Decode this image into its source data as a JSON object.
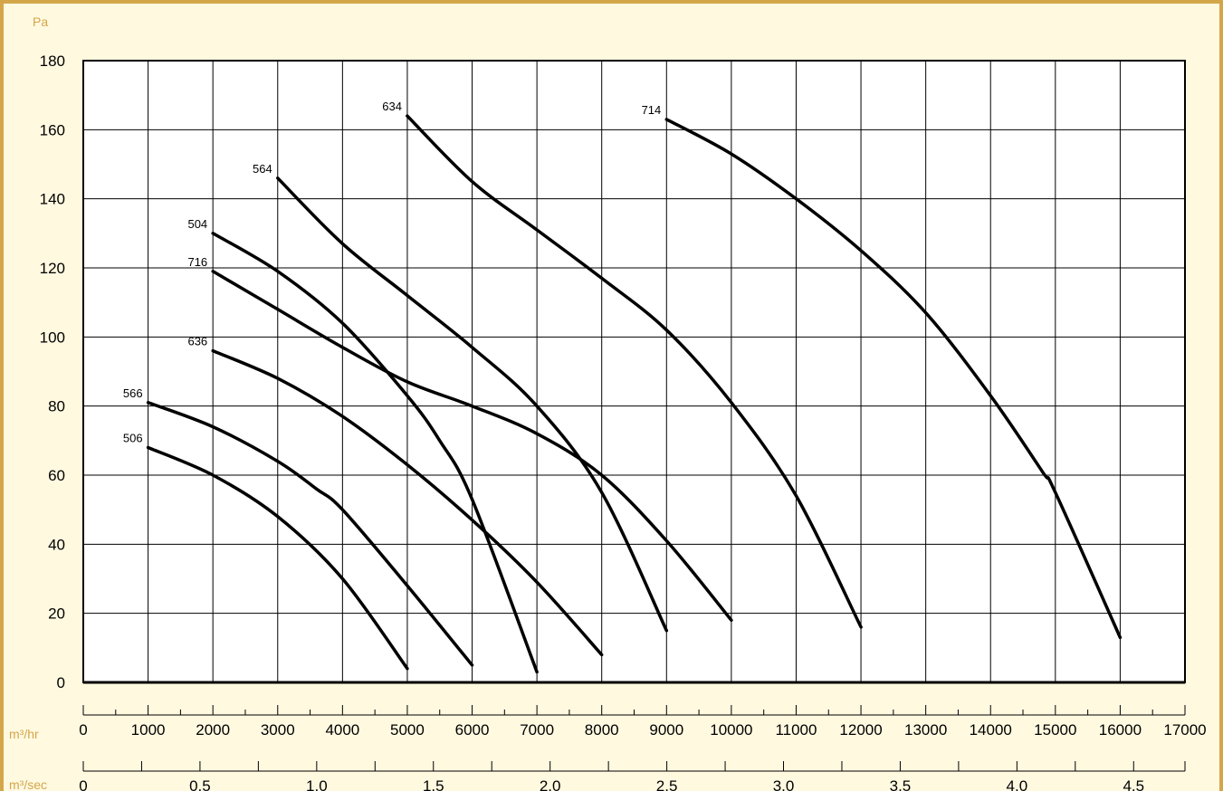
{
  "colors": {
    "accent": "#d4a64a",
    "background": "#fff9e0",
    "line": "#000000"
  },
  "chart_data": {
    "type": "line",
    "ylabel": "Pa",
    "ylim": [
      0,
      180
    ],
    "y_ticks": [
      "0",
      "20",
      "40",
      "60",
      "80",
      "100",
      "120",
      "140",
      "160",
      "180"
    ],
    "x_axes": [
      {
        "unit": "m³/hr",
        "range": [
          0,
          17000
        ],
        "ticks": [
          "0",
          "1000",
          "2000",
          "3000",
          "4000",
          "5000",
          "6000",
          "7000",
          "8000",
          "9000",
          "10000",
          "11000",
          "12000",
          "13000",
          "14000",
          "15000",
          "16000",
          "17000"
        ]
      },
      {
        "unit": "m³/sec",
        "range": [
          0,
          4.72
        ],
        "ticks": [
          "0",
          "0.5",
          "1.0",
          "1.5",
          "2.0",
          "2.5",
          "3.0",
          "3.5",
          "4.0",
          "4.5"
        ]
      }
    ],
    "grid": true,
    "series": [
      {
        "name": "506",
        "points": [
          [
            1000,
            68
          ],
          [
            2000,
            60
          ],
          [
            3000,
            48
          ],
          [
            4000,
            30
          ],
          [
            5000,
            4
          ]
        ]
      },
      {
        "name": "566",
        "points": [
          [
            1000,
            81
          ],
          [
            2000,
            74
          ],
          [
            3000,
            64
          ],
          [
            3600,
            56
          ],
          [
            4000,
            50
          ],
          [
            5000,
            28
          ],
          [
            6000,
            5
          ]
        ]
      },
      {
        "name": "636",
        "points": [
          [
            2000,
            96
          ],
          [
            3000,
            88
          ],
          [
            4000,
            77
          ],
          [
            5000,
            63
          ],
          [
            6000,
            47
          ],
          [
            7000,
            29
          ],
          [
            8000,
            8
          ]
        ]
      },
      {
        "name": "716",
        "points": [
          [
            2000,
            119
          ],
          [
            3000,
            108
          ],
          [
            4000,
            97
          ],
          [
            5000,
            87
          ],
          [
            6000,
            80
          ],
          [
            7000,
            72
          ],
          [
            8000,
            60
          ],
          [
            9000,
            41
          ],
          [
            10000,
            18
          ]
        ]
      },
      {
        "name": "504",
        "points": [
          [
            2000,
            130
          ],
          [
            3000,
            119
          ],
          [
            4000,
            104
          ],
          [
            5000,
            83
          ],
          [
            5500,
            70
          ],
          [
            6000,
            53
          ],
          [
            7000,
            3
          ]
        ]
      },
      {
        "name": "564",
        "points": [
          [
            3000,
            146
          ],
          [
            4000,
            127
          ],
          [
            5000,
            112
          ],
          [
            6000,
            97
          ],
          [
            7000,
            80
          ],
          [
            8000,
            55
          ],
          [
            9000,
            15
          ]
        ]
      },
      {
        "name": "634",
        "points": [
          [
            5000,
            164
          ],
          [
            6000,
            145
          ],
          [
            7000,
            131
          ],
          [
            8000,
            117
          ],
          [
            9000,
            102
          ],
          [
            10000,
            81
          ],
          [
            11000,
            54
          ],
          [
            12000,
            16
          ]
        ]
      },
      {
        "name": "714",
        "points": [
          [
            9000,
            163
          ],
          [
            10000,
            153
          ],
          [
            11000,
            140
          ],
          [
            12000,
            125
          ],
          [
            13000,
            107
          ],
          [
            14000,
            83
          ],
          [
            14800,
            61
          ],
          [
            15000,
            55
          ],
          [
            16000,
            13
          ]
        ]
      }
    ]
  }
}
